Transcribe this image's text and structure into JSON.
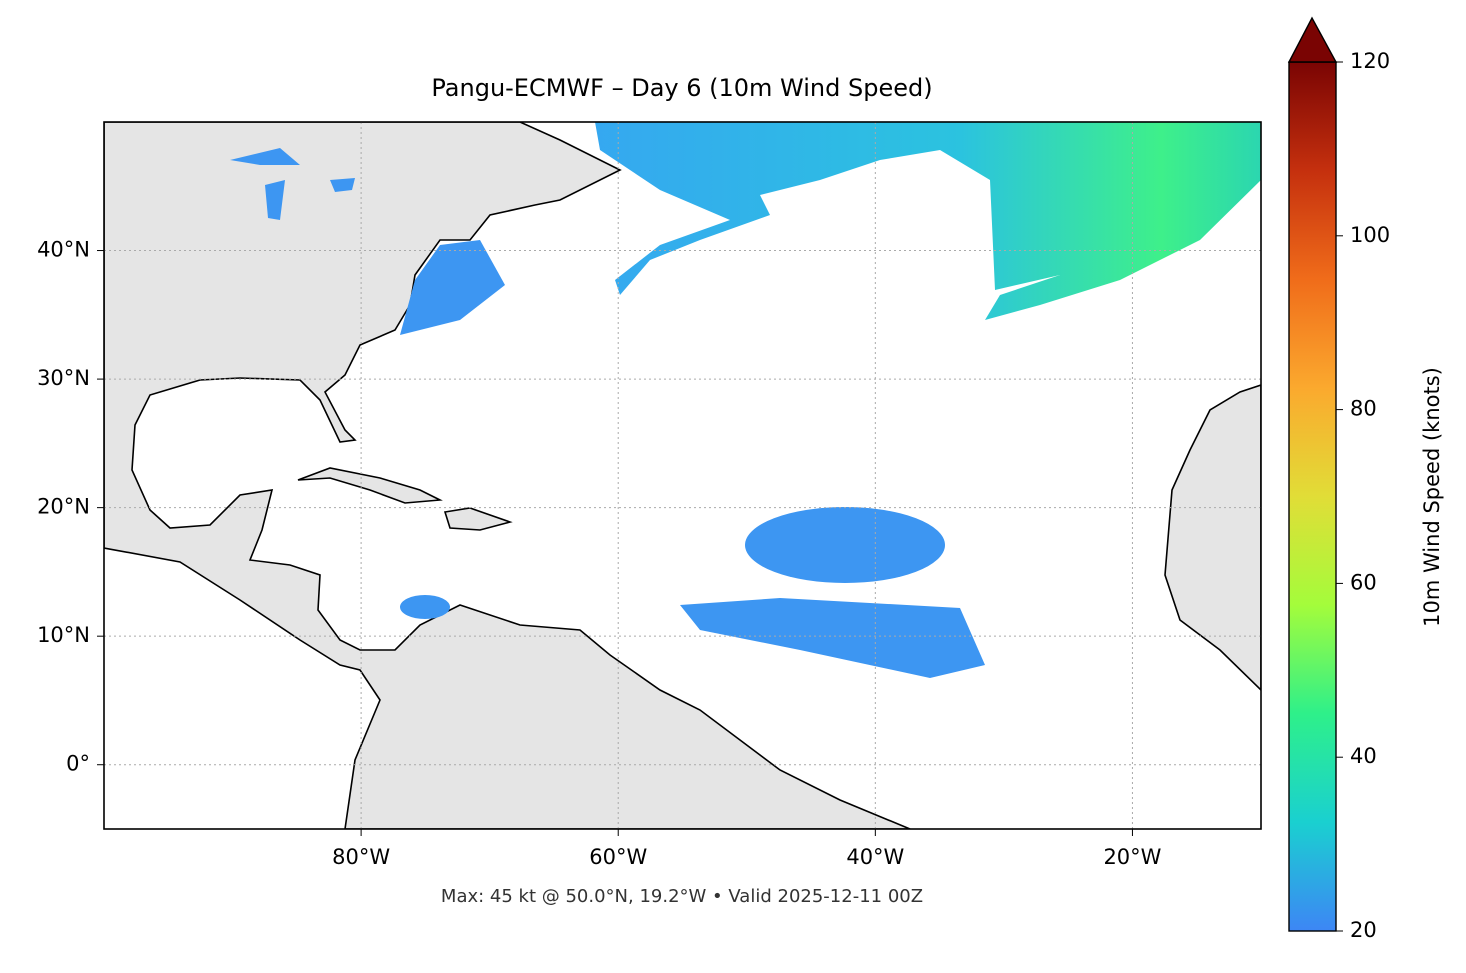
{
  "chart_data": {
    "type": "map",
    "title": "Pangu-ECMWF – Day 6 (10m Wind Speed)",
    "note": "Max: 45 kt @ 50.0°N, 19.2°W • Valid 2025-12-11 00Z",
    "xlim": [
      -100,
      -10
    ],
    "ylim": [
      -5,
      50
    ],
    "xticks": [
      {
        "value": -80,
        "label": "80°W"
      },
      {
        "value": -60,
        "label": "60°W"
      },
      {
        "value": -40,
        "label": "40°W"
      },
      {
        "value": -20,
        "label": "20°W"
      }
    ],
    "yticks": [
      {
        "value": 0,
        "label": "0°"
      },
      {
        "value": 10,
        "label": "10°N"
      },
      {
        "value": 20,
        "label": "20°N"
      },
      {
        "value": 30,
        "label": "30°N"
      },
      {
        "value": 40,
        "label": "40°N"
      }
    ],
    "grid": true,
    "colorbar": {
      "label": "10m Wind Speed (knots)",
      "lim": [
        20,
        120
      ],
      "ticks": [
        20,
        40,
        60,
        80,
        100,
        120
      ],
      "colormap": "turbo",
      "extend": "max"
    }
  }
}
